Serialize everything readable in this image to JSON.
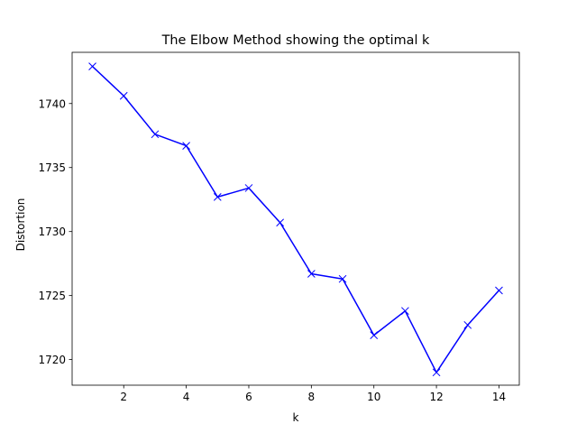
{
  "chart_data": {
    "type": "line",
    "title": "The Elbow Method showing the optimal k",
    "xlabel": "k",
    "ylabel": "Distortion",
    "xlim": [
      0.35,
      14.65
    ],
    "ylim": [
      1718.0,
      1744.0
    ],
    "xticks": [
      2,
      4,
      6,
      8,
      10,
      12,
      14
    ],
    "xtick_labels": [
      "2",
      "4",
      "6",
      "8",
      "10",
      "12",
      "14"
    ],
    "yticks": [
      1720,
      1725,
      1730,
      1735,
      1740
    ],
    "ytick_labels": [
      "1720",
      "1725",
      "1730",
      "1735",
      "1740"
    ],
    "grid": false,
    "marker": "x",
    "series": [
      {
        "color": "#0000ff",
        "x": [
          1,
          2,
          3,
          4,
          5,
          6,
          7,
          8,
          9,
          10,
          11,
          12,
          13,
          14
        ],
        "y": [
          1742.9,
          1740.6,
          1737.6,
          1736.7,
          1732.7,
          1733.4,
          1730.7,
          1726.7,
          1726.3,
          1721.9,
          1723.8,
          1719.0,
          1722.7,
          1725.4
        ]
      }
    ]
  }
}
